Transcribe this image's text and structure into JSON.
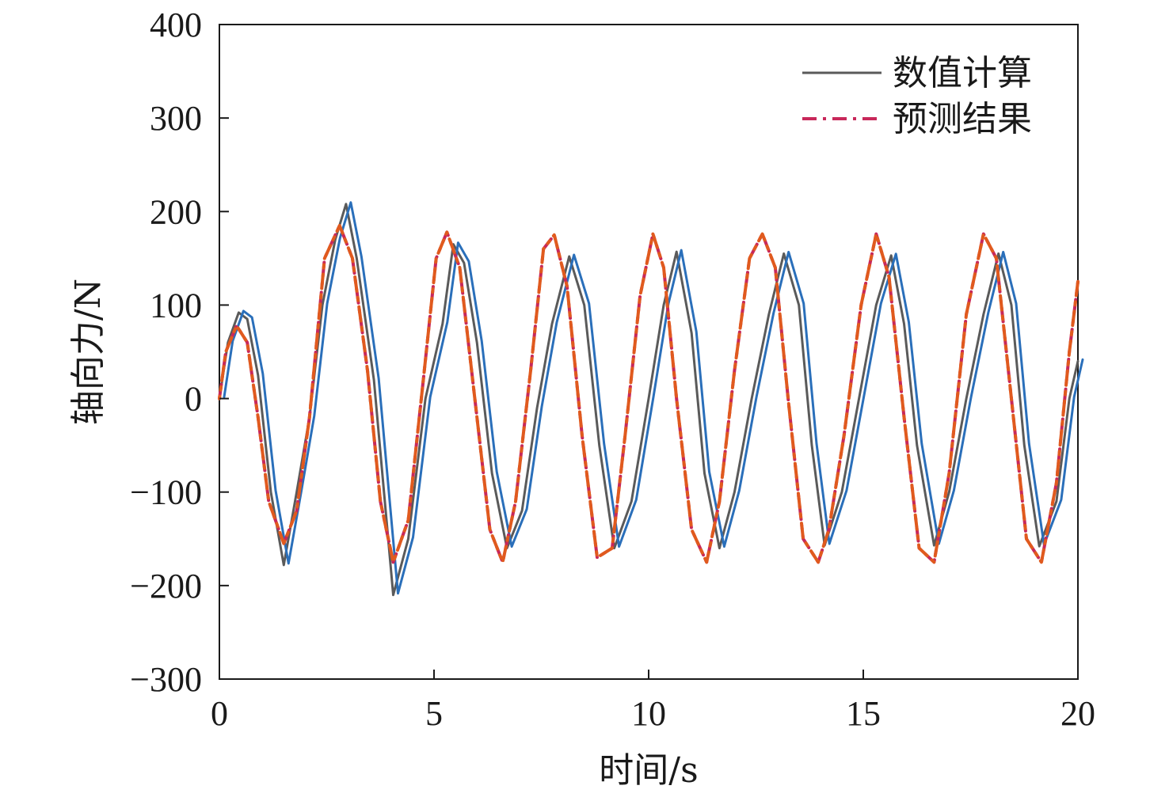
{
  "chart_data": {
    "type": "line",
    "title": "",
    "xlabel": "时间/s",
    "ylabel": "轴向力/N",
    "xlim": [
      0,
      20
    ],
    "ylim": [
      -300,
      400
    ],
    "xticks": [
      0,
      5,
      10,
      15,
      20
    ],
    "xtick_labels": [
      "0",
      "5",
      "10",
      "15",
      "20"
    ],
    "yticks": [
      400,
      300,
      200,
      100,
      0,
      -100,
      -200,
      -300
    ],
    "ytick_labels": [
      "400",
      "300",
      "200",
      "100",
      "0",
      "−100",
      "−200",
      "−300"
    ],
    "grid": false,
    "legend_position": "top-right",
    "series": [
      {
        "name": "数值计算",
        "style": "solid",
        "colors": [
          "#5a5a5a",
          "#2a6fba"
        ],
        "x": [
          0,
          0.2,
          0.45,
          0.65,
          0.9,
          1.2,
          1.5,
          1.8,
          2.1,
          2.4,
          2.7,
          2.95,
          3.2,
          3.6,
          4.05,
          4.4,
          4.8,
          5.2,
          5.45,
          5.7,
          6.0,
          6.35,
          6.7,
          7.05,
          7.4,
          7.75,
          8.15,
          8.5,
          8.85,
          9.2,
          9.6,
          10.0,
          10.35,
          10.65,
          11.0,
          11.3,
          11.65,
          12.0,
          12.4,
          12.8,
          13.15,
          13.5,
          13.8,
          14.1,
          14.5,
          14.9,
          15.3,
          15.65,
          15.95,
          16.25,
          16.65,
          17.0,
          17.4,
          17.8,
          18.15,
          18.45,
          18.75,
          19.1,
          19.5,
          19.8,
          20.0
        ],
        "values": [
          0,
          60,
          92,
          85,
          25,
          -100,
          -178,
          -100,
          -20,
          100,
          170,
          208,
          150,
          20,
          -210,
          -150,
          0,
          80,
          165,
          145,
          60,
          -80,
          -160,
          -120,
          -10,
          80,
          152,
          100,
          -50,
          -160,
          -110,
          0,
          100,
          157,
          70,
          -80,
          -160,
          -100,
          0,
          90,
          155,
          100,
          -50,
          -157,
          -100,
          0,
          100,
          153,
          80,
          -50,
          -157,
          -100,
          0,
          90,
          155,
          100,
          -50,
          -158,
          -110,
          0,
          40
        ]
      },
      {
        "name": "预测结果",
        "style": "dash-dot",
        "colors": [
          "#c8285a",
          "#e05a1e"
        ],
        "x": [
          0,
          0.15,
          0.4,
          0.65,
          0.9,
          1.15,
          1.5,
          1.8,
          2.1,
          2.45,
          2.8,
          3.1,
          3.45,
          3.75,
          4.05,
          4.4,
          4.75,
          5.05,
          5.3,
          5.6,
          5.95,
          6.3,
          6.6,
          6.9,
          7.25,
          7.55,
          7.8,
          8.1,
          8.45,
          8.8,
          9.15,
          9.45,
          9.8,
          10.1,
          10.35,
          10.65,
          11.0,
          11.35,
          11.65,
          12.0,
          12.35,
          12.65,
          12.95,
          13.25,
          13.6,
          13.95,
          14.2,
          14.55,
          14.95,
          15.3,
          15.6,
          15.95,
          16.3,
          16.65,
          17.0,
          17.4,
          17.8,
          18.1,
          18.45,
          18.8,
          19.15,
          19.5,
          19.8,
          20.0
        ],
        "values": [
          0,
          50,
          78,
          60,
          -20,
          -110,
          -155,
          -120,
          -20,
          150,
          185,
          150,
          30,
          -110,
          -175,
          -130,
          20,
          150,
          178,
          140,
          0,
          -140,
          -175,
          -110,
          30,
          160,
          175,
          120,
          -40,
          -170,
          -160,
          -40,
          110,
          176,
          140,
          0,
          -140,
          -175,
          -110,
          30,
          150,
          176,
          140,
          0,
          -150,
          -175,
          -140,
          -40,
          100,
          176,
          130,
          -20,
          -160,
          -175,
          -80,
          90,
          176,
          150,
          0,
          -150,
          -175,
          -90,
          50,
          125
        ]
      }
    ]
  }
}
